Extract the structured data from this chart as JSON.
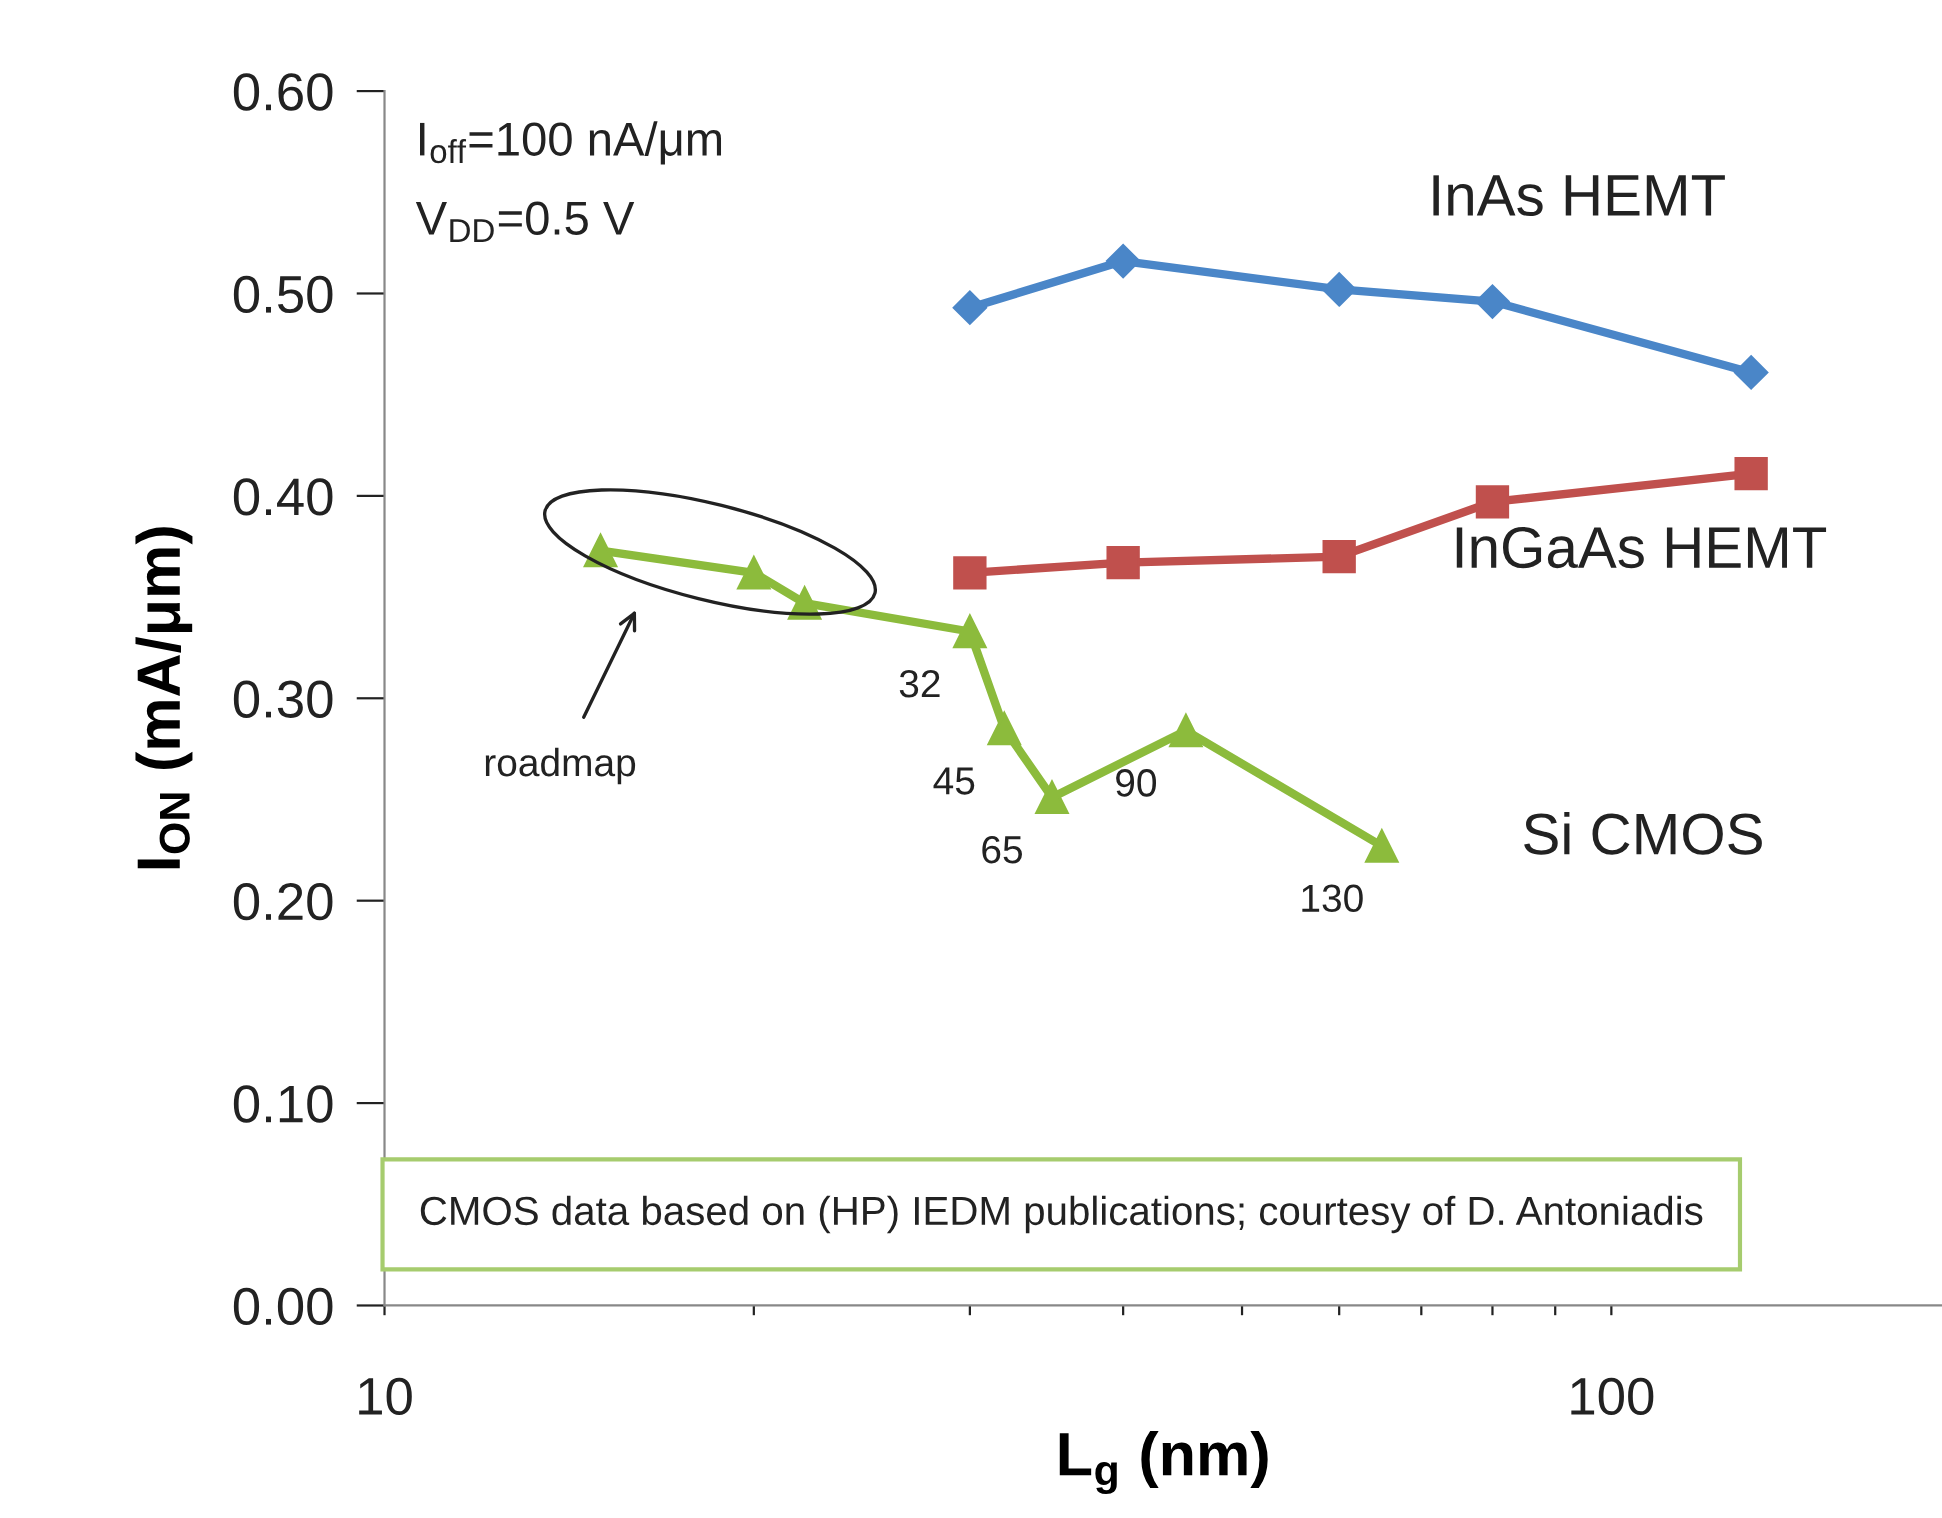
{
  "chart_data": {
    "type": "line",
    "xlabel": "L$_{g}$ (nm)",
    "ylabel": "I$_{ON}$ (mA/μm)",
    "log": "x",
    "xlim": [
      10,
      186
    ],
    "xticks": [
      10,
      {
        "value": 20,
        "label": null
      },
      {
        "value": 30,
        "label": null
      },
      {
        "value": 40,
        "label": null
      },
      {
        "value": 50,
        "label": null
      },
      {
        "value": 60,
        "label": null
      },
      {
        "value": 70,
        "label": null
      },
      {
        "value": 80,
        "label": null
      },
      {
        "value": 90,
        "label": null
      },
      100
    ],
    "ylim": [
      0,
      0.6
    ],
    "yticks": [
      {
        "value": 0,
        "label": "0.00"
      },
      {
        "value": 0.1,
        "label": "0.10"
      },
      {
        "value": 0.2,
        "label": "0.20"
      },
      {
        "value": 0.3,
        "label": "0.30"
      },
      {
        "value": 0.4,
        "label": "0.40"
      },
      {
        "value": 0.5,
        "label": "0.50"
      },
      {
        "value": 0.6,
        "label": "0.60"
      }
    ],
    "grid": false,
    "legend": false,
    "line_style": "solid",
    "series": [
      {
        "name": "InAs HEMT",
        "color": "#4a86c8",
        "marker": "diamond",
        "x": [
          30,
          40,
          60,
          80,
          130
        ],
        "values": [
          0.493,
          0.516,
          0.502,
          0.496,
          0.461
        ]
      },
      {
        "name": "InGaAs HEMT",
        "color": "#c0504d",
        "marker": "square",
        "x": [
          30,
          40,
          60,
          80,
          130
        ],
        "values": [
          0.362,
          0.367,
          0.37,
          0.397,
          0.411
        ]
      },
      {
        "name": "Si CMOS",
        "color": "#8cbb3c",
        "marker": "triangle",
        "x": [
          15,
          20,
          22,
          30,
          32,
          35,
          45,
          65
        ],
        "values": [
          0.373,
          0.362,
          0.347,
          0.333,
          0.285,
          0.251,
          0.284,
          0.227
        ]
      }
    ],
    "annotations": [
      "I$_{off}$=100 nA/μm",
      "V$_{DD}$=0.5 V",
      "CMOS data based on (HP) IEDM publications; courtesy of D. Antoniadis",
      "roadmap",
      {
        "text": "32",
        "x": 30,
        "y": 0.333
      },
      {
        "text": "45",
        "x": 32,
        "y": 0.285
      },
      {
        "text": "65",
        "x": 35,
        "y": 0.251
      },
      {
        "text": "90",
        "x": 45,
        "y": 0.284
      },
      {
        "text": "130",
        "x": 65,
        "y": 0.227
      }
    ]
  }
}
